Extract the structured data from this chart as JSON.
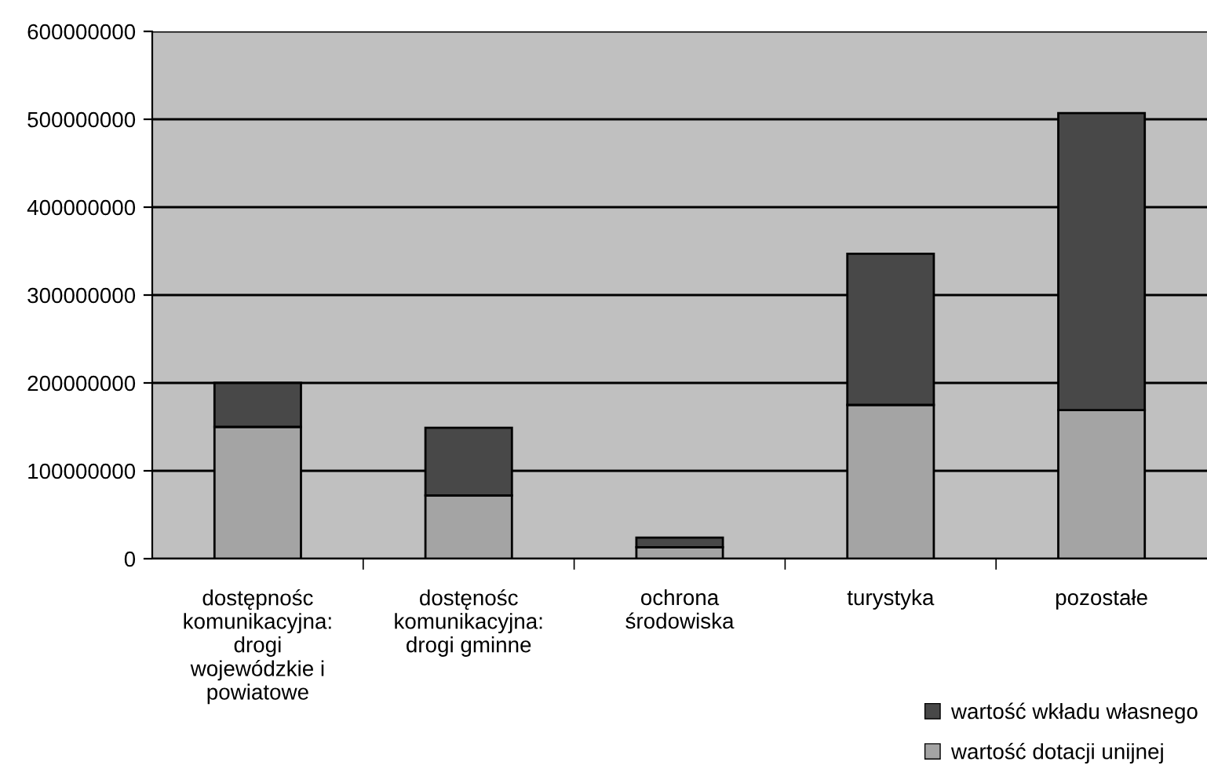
{
  "chart_data": {
    "type": "bar",
    "stacked": true,
    "categories": [
      "dostępnośc\nkomunikacyjna:\ndrogi\nwojewódzkie i\npowiatowe",
      "dostęnośc\nkomunikacyjna:\ndrogi gminne",
      "ochrona\nśrodowiska",
      "turystyka",
      "pozostałe"
    ],
    "series": [
      {
        "name": "wartość dotacji unijnej",
        "color": "#a4a4a4",
        "values": [
          150000000,
          72000000,
          13000000,
          175000000,
          169000000
        ]
      },
      {
        "name": "wartość wkładu własnego",
        "color": "#484848",
        "values": [
          50000000,
          77000000,
          11000000,
          172000000,
          338000000
        ]
      }
    ],
    "ylim": [
      0,
      600000000
    ],
    "yticks": [
      0,
      100000000,
      200000000,
      300000000,
      400000000,
      500000000,
      600000000
    ],
    "grid": "y",
    "legend": "bottom right"
  }
}
